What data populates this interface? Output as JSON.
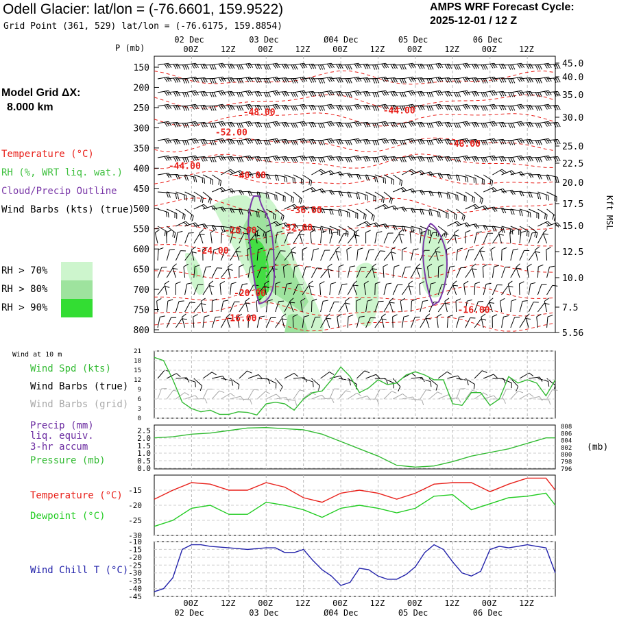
{
  "header": {
    "title": "Odell Glacier:  lat/lon = (-76.6601, 159.9522)",
    "gridpoint": "Grid Point (361, 529) lat/lon = (-76.6175, 159.8854)",
    "cycle_line1": "AMPS WRF Forecast Cycle:",
    "cycle_line2": "2025-12-01 / 12  Z",
    "model_grid_label": "Model Grid ΔX:",
    "model_grid_value": "8.000 km"
  },
  "legend": {
    "temperature": "Temperature (°C)",
    "rh": "RH (%, WRT liq. wat.)",
    "cloud": "Cloud/Precip Outline",
    "wind": "Wind Barbs (kts) (true)",
    "rh70": "RH > 70%",
    "rh80": "RH > 80%",
    "rh90": "RH > 90%"
  },
  "colors": {
    "temperature": "#e8201a",
    "rh": "#3fc03f",
    "cloud": "#7a38a8",
    "wind": "#000000",
    "wind_grid": "#a8a8a8",
    "rh70": "#cdf5cd",
    "rh80": "#9ee39e",
    "rh90": "#33dd33",
    "pressure": "#33bb33",
    "precip": "#6a2aa0",
    "dewpoint": "#22cc22",
    "windchill": "#2222aa"
  },
  "time_axis": {
    "top_dates": [
      "02 Dec",
      "03 Dec",
      "Ø04 Dec",
      "05 Dec",
      "06 Dec"
    ],
    "top_hours": [
      "00Z",
      "12Z",
      "00Z",
      "12Z",
      "00Z",
      "12Z",
      "00Z",
      "12Z",
      "00Z",
      "12Z"
    ],
    "bottom_hours": [
      "00Z",
      "12Z",
      "00Z",
      "12Z",
      "00Z",
      "12Z",
      "00Z",
      "12Z",
      "00Z",
      "12Z"
    ],
    "bottom_dates": [
      "02 Dec",
      "03 Dec",
      "Ø04 Dec",
      "05 Dec",
      "06 Dec"
    ]
  },
  "chart_data": [
    {
      "type": "line",
      "title": "",
      "ylabel": "P (mb)",
      "y_right_label": "Kft MSL",
      "pressure_ticks": [
        "150",
        "200",
        "250",
        "300",
        "350",
        "400",
        "450",
        "500",
        "550",
        "600",
        "650",
        "700",
        "750",
        "800"
      ],
      "height_ticks": [
        "45.0",
        "40.0",
        "35.0",
        "30.0",
        "25.0",
        "22.5",
        "20.0",
        "17.5",
        "15.0",
        "12.5",
        "10.0",
        "7.5",
        "5.56"
      ],
      "temperature_labels": [
        {
          "text": "-48.00",
          "time": 21,
          "p": 262
        },
        {
          "text": "-44.00",
          "time": 66,
          "p": 258
        },
        {
          "text": "-52.00",
          "time": 12,
          "p": 312
        },
        {
          "text": "-48.00",
          "time": 87,
          "p": 340
        },
        {
          "text": "-44.00",
          "time": -3,
          "p": 395
        },
        {
          "text": "-40.00",
          "time": 18,
          "p": 418
        },
        {
          "text": "-36.00",
          "time": 36,
          "p": 505
        },
        {
          "text": "-28.00",
          "time": 15,
          "p": 555
        },
        {
          "text": "-32.00",
          "time": 33,
          "p": 548
        },
        {
          "text": "-24.00",
          "time": 6,
          "p": 605
        },
        {
          "text": "-20.00",
          "time": 18,
          "p": 710
        },
        {
          "text": "-16.00",
          "time": 15,
          "p": 772
        },
        {
          "text": "-16.00",
          "time": 90,
          "p": 752
        }
      ]
    },
    {
      "type": "line",
      "title": "Wind at 10 m",
      "yticks": [
        "21",
        "18",
        "15",
        "12",
        "9",
        "6",
        "3",
        "0"
      ],
      "ylim": [
        0,
        21
      ],
      "labels": {
        "speed": "Wind Spd (kts)",
        "barbs_true": "Wind Barbs (true)",
        "barbs_grid": "Wind Barbs (grid)"
      },
      "x": [
        -12,
        -9,
        -6,
        -3,
        0,
        3,
        6,
        9,
        12,
        15,
        18,
        21,
        24,
        27,
        30,
        33,
        36,
        39,
        42,
        45,
        48,
        51,
        54,
        57,
        60,
        63,
        66,
        69,
        72,
        75,
        78,
        81,
        84,
        87,
        90,
        93,
        96,
        99,
        102,
        105,
        108,
        111,
        114,
        117
      ],
      "series": [
        {
          "values": [
            19,
            18,
            12,
            5,
            3,
            2,
            2.5,
            1.2,
            1.2,
            2,
            1.8,
            1,
            4.5,
            5,
            4.5,
            2.5,
            6,
            8,
            8.5,
            12,
            16,
            13,
            8,
            9.5,
            12,
            10.5,
            11,
            13.5,
            14.5,
            13.5,
            12,
            12,
            4.5,
            4,
            8,
            8,
            4,
            6,
            13,
            11,
            12,
            11,
            7,
            12
          ]
        }
      ]
    },
    {
      "type": "line",
      "title": "",
      "labels": {
        "precip": "Precip (mm)",
        "precip2": "liq. equiv.",
        "precip3": "3-hr accum",
        "pressure": "Pressure (mb)",
        "right_unit": "(mb)"
      },
      "yticks_left": [
        "2.5",
        "2.0",
        "1.5",
        "1.0",
        "0.5",
        "0.0"
      ],
      "yticks_right": [
        "808",
        "806",
        "804",
        "802",
        "800",
        "798",
        "796"
      ],
      "ylim_right": [
        796,
        808
      ],
      "x": [
        -12,
        -6,
        0,
        6,
        12,
        18,
        24,
        30,
        36,
        42,
        48,
        54,
        60,
        66,
        72,
        78,
        84,
        90,
        96,
        102,
        108,
        114,
        117
      ],
      "series": [
        {
          "values": [
            804.5,
            804.8,
            805.5,
            805.8,
            806.5,
            807.2,
            807.3,
            807,
            806.7,
            805.5,
            803.5,
            801.5,
            799.5,
            797.0,
            796.5,
            796.8,
            798,
            799.5,
            800.5,
            801.5,
            803,
            804.5,
            804.5
          ]
        }
      ]
    },
    {
      "type": "line",
      "title": "",
      "labels": {
        "temperature": "Temperature (°C)",
        "dewpoint": "Dewpoint (°C)"
      },
      "yticks": [
        "-15",
        "-20",
        "-25",
        "-30"
      ],
      "ylim": [
        -30,
        -10
      ],
      "x": [
        -12,
        -6,
        0,
        6,
        12,
        18,
        24,
        30,
        36,
        42,
        48,
        54,
        60,
        66,
        72,
        78,
        84,
        90,
        96,
        102,
        108,
        114,
        117
      ],
      "series": [
        {
          "values": [
            -18,
            -15,
            -12.5,
            -13,
            -15,
            -15,
            -12.5,
            -14,
            -17.5,
            -19,
            -16,
            -15,
            -16,
            -18,
            -16,
            -13,
            -12.5,
            -12.5,
            -15.5,
            -13,
            -11,
            -11,
            -15
          ]
        },
        {
          "values": [
            -27,
            -25,
            -21,
            -20,
            -23,
            -23,
            -19,
            -20,
            -21.5,
            -24,
            -21,
            -20,
            -21,
            -22.5,
            -21,
            -17,
            -16.5,
            -21.5,
            -19.5,
            -17.5,
            -17,
            -16,
            -20
          ]
        }
      ]
    },
    {
      "type": "line",
      "title": "",
      "labels": {
        "windchill": "Wind Chill T (°C)"
      },
      "yticks": [
        "-10",
        "-15",
        "-20",
        "-25",
        "-30",
        "-35",
        "-40",
        "-45"
      ],
      "ylim": [
        -45,
        -10
      ],
      "x": [
        -12,
        -9,
        -6,
        -3,
        0,
        3,
        6,
        12,
        18,
        24,
        27,
        30,
        33,
        36,
        39,
        42,
        45,
        48,
        51,
        54,
        57,
        60,
        63,
        66,
        69,
        72,
        75,
        78,
        81,
        84,
        87,
        90,
        93,
        96,
        99,
        102,
        105,
        108,
        111,
        114,
        117
      ],
      "series": [
        {
          "values": [
            -42,
            -40,
            -33,
            -15,
            -12,
            -12,
            -13,
            -14,
            -15,
            -14,
            -14,
            -17,
            -17,
            -15,
            -22,
            -28,
            -32,
            -38,
            -36,
            -27,
            -28,
            -32,
            -34,
            -34,
            -31,
            -26,
            -17,
            -12,
            -15,
            -23,
            -30,
            -32,
            -29,
            -15,
            -13,
            -14,
            -13,
            -12,
            -13,
            -14,
            -30
          ]
        }
      ]
    }
  ]
}
